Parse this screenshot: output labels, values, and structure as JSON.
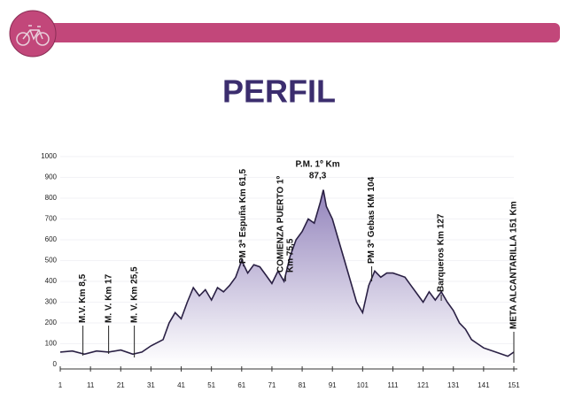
{
  "chart_data": {
    "type": "area",
    "title": "PERFIL",
    "x": [
      1,
      5,
      9,
      13,
      17,
      21,
      25,
      28,
      31,
      35,
      37,
      39,
      41,
      43,
      45,
      47,
      49,
      51,
      53,
      55,
      57,
      59,
      61,
      63,
      65,
      67,
      69,
      71,
      73,
      75,
      77,
      79,
      81,
      83,
      85,
      87,
      88,
      89,
      91,
      93,
      95,
      97,
      99,
      101,
      103,
      105,
      107,
      109,
      111,
      113,
      115,
      117,
      119,
      121,
      123,
      125,
      127,
      129,
      131,
      133,
      135,
      137,
      139,
      141,
      145,
      149,
      151
    ],
    "values": [
      60,
      65,
      50,
      65,
      60,
      70,
      50,
      60,
      90,
      120,
      200,
      250,
      220,
      300,
      370,
      330,
      360,
      310,
      370,
      350,
      380,
      420,
      500,
      440,
      480,
      470,
      430,
      390,
      450,
      400,
      520,
      600,
      640,
      700,
      680,
      780,
      840,
      760,
      700,
      600,
      500,
      400,
      300,
      250,
      380,
      450,
      420,
      440,
      440,
      430,
      420,
      380,
      340,
      300,
      350,
      310,
      350,
      300,
      260,
      200,
      170,
      120,
      100,
      80,
      60,
      40,
      60
    ],
    "color": "#8d7db8",
    "xlim": [
      1,
      151
    ],
    "xticks": [
      1,
      11,
      21,
      31,
      41,
      51,
      61,
      71,
      81,
      91,
      101,
      111,
      121,
      131,
      141,
      151
    ],
    "ylim": [
      0,
      1000
    ],
    "yticks": [
      0,
      100,
      200,
      300,
      400,
      500,
      600,
      700,
      800,
      900,
      1000
    ],
    "annotations": [
      {
        "x": 8.5,
        "lines": [
          "M.V. Km 8,5"
        ]
      },
      {
        "x": 17,
        "lines": [
          "M. V. Km 17"
        ]
      },
      {
        "x": 25.5,
        "lines": [
          "M. V. Km 25,5"
        ]
      },
      {
        "x": 61.5,
        "lines": [
          "PM 3ª Espuña Km 61,5"
        ]
      },
      {
        "x": 75.5,
        "lines": [
          "COMIENZA PUERTO 1º",
          "Km 75,5"
        ]
      },
      {
        "x": 87.3,
        "lines": [
          "P.M. 1º  Km",
          "87,3"
        ]
      },
      {
        "x": 104,
        "lines": [
          "PM 3ª Gebas KM 104"
        ]
      },
      {
        "x": 127,
        "lines": [
          "Barqueros Km 127"
        ]
      },
      {
        "x": 151,
        "lines": [
          "META ALCANTARILLA 151 Km"
        ]
      }
    ]
  }
}
